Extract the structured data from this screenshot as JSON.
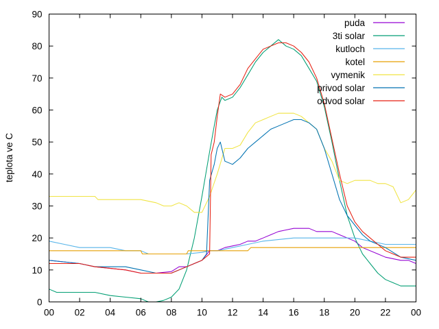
{
  "chart_data": {
    "type": "line",
    "title": "",
    "xlabel": "",
    "ylabel": "teplota ve C",
    "xlim": [
      0,
      24
    ],
    "ylim": [
      0,
      90
    ],
    "x_tick_labels": [
      "00",
      "02",
      "04",
      "06",
      "08",
      "10",
      "12",
      "14",
      "16",
      "18",
      "20",
      "22",
      "00"
    ],
    "y_tick_labels": [
      "0",
      "10",
      "20",
      "30",
      "40",
      "50",
      "60",
      "70",
      "80",
      "90"
    ],
    "grid": false,
    "legend_position": "top-right",
    "series": [
      {
        "name": "puda",
        "color": "#9400d3",
        "points": [
          [
            0,
            13
          ],
          [
            2,
            12
          ],
          [
            3,
            11
          ],
          [
            5,
            10
          ],
          [
            6,
            9
          ],
          [
            7,
            9
          ],
          [
            8,
            9.5
          ],
          [
            8.5,
            11
          ],
          [
            9,
            11
          ],
          [
            9.5,
            12
          ],
          [
            10,
            13
          ],
          [
            10.5,
            16
          ],
          [
            11,
            16
          ],
          [
            11.5,
            17
          ],
          [
            12,
            17.5
          ],
          [
            12.5,
            18
          ],
          [
            13,
            19
          ],
          [
            13.5,
            19
          ],
          [
            14,
            20
          ],
          [
            14.5,
            21
          ],
          [
            15,
            22
          ],
          [
            15.5,
            22.5
          ],
          [
            16,
            23
          ],
          [
            17,
            23
          ],
          [
            17.5,
            22
          ],
          [
            18.5,
            22
          ],
          [
            19,
            21
          ],
          [
            20,
            19
          ],
          [
            20.5,
            17
          ],
          [
            21.5,
            15
          ],
          [
            22,
            14
          ],
          [
            23,
            13
          ],
          [
            23.5,
            13
          ],
          [
            24,
            12
          ]
        ]
      },
      {
        "name": "3ti solar",
        "color": "#009e73",
        "points": [
          [
            0,
            4
          ],
          [
            0.5,
            3
          ],
          [
            2,
            3
          ],
          [
            3,
            3
          ],
          [
            4,
            2
          ],
          [
            5,
            1.5
          ],
          [
            6,
            1
          ],
          [
            6.5,
            0
          ],
          [
            7,
            0
          ],
          [
            7.5,
            0.5
          ],
          [
            8,
            1.5
          ],
          [
            8.5,
            4
          ],
          [
            9,
            10
          ],
          [
            9.5,
            20
          ],
          [
            10,
            33
          ],
          [
            10.5,
            47
          ],
          [
            10.8,
            55
          ],
          [
            11,
            60
          ],
          [
            11.3,
            64
          ],
          [
            11.5,
            63
          ],
          [
            12,
            64
          ],
          [
            12.5,
            67
          ],
          [
            13,
            71
          ],
          [
            13.5,
            75
          ],
          [
            14,
            78
          ],
          [
            14.5,
            80
          ],
          [
            15,
            82
          ],
          [
            15.5,
            80
          ],
          [
            16,
            79
          ],
          [
            16.5,
            77
          ],
          [
            17,
            73
          ],
          [
            17.5,
            69
          ],
          [
            18,
            61
          ],
          [
            18.5,
            50
          ],
          [
            19,
            38
          ],
          [
            19.5,
            27
          ],
          [
            20,
            20
          ],
          [
            20.5,
            15
          ],
          [
            21,
            12
          ],
          [
            21.5,
            9
          ],
          [
            22,
            7
          ],
          [
            22.5,
            6
          ],
          [
            23,
            5
          ],
          [
            24,
            5
          ]
        ]
      },
      {
        "name": "kutloch",
        "color": "#56b4e9",
        "points": [
          [
            0,
            19
          ],
          [
            1,
            18
          ],
          [
            2,
            17
          ],
          [
            4,
            17
          ],
          [
            5,
            16
          ],
          [
            6,
            16
          ],
          [
            6.5,
            15
          ],
          [
            8,
            15
          ],
          [
            9,
            15
          ],
          [
            10,
            15.5
          ],
          [
            10.5,
            16
          ],
          [
            11,
            16
          ],
          [
            12,
            17
          ],
          [
            13,
            18
          ],
          [
            14,
            19
          ],
          [
            16,
            20
          ],
          [
            18,
            20
          ],
          [
            19,
            20
          ],
          [
            20,
            20
          ],
          [
            21,
            19
          ],
          [
            22,
            18
          ],
          [
            24,
            18
          ]
        ]
      },
      {
        "name": "kotel",
        "color": "#e69f00",
        "points": [
          [
            0,
            16
          ],
          [
            6,
            16
          ],
          [
            6.1,
            15
          ],
          [
            9,
            15
          ],
          [
            9.1,
            16
          ],
          [
            13,
            16
          ],
          [
            13.2,
            17
          ],
          [
            24,
            17
          ]
        ]
      },
      {
        "name": "vymenik",
        "color": "#f0e442",
        "points": [
          [
            0,
            33
          ],
          [
            3,
            33
          ],
          [
            3.2,
            32
          ],
          [
            6,
            32
          ],
          [
            7,
            31
          ],
          [
            7.5,
            30
          ],
          [
            8,
            30
          ],
          [
            8.5,
            31
          ],
          [
            9,
            30
          ],
          [
            9.5,
            28
          ],
          [
            10,
            28
          ],
          [
            10.5,
            33
          ],
          [
            11,
            40
          ],
          [
            11.5,
            48
          ],
          [
            12,
            48
          ],
          [
            12.5,
            49
          ],
          [
            13,
            53
          ],
          [
            13.5,
            56
          ],
          [
            14,
            57
          ],
          [
            14.5,
            58
          ],
          [
            15,
            59
          ],
          [
            16,
            59
          ],
          [
            16.5,
            58
          ],
          [
            17,
            56
          ],
          [
            17.5,
            54
          ],
          [
            18,
            48
          ],
          [
            18.5,
            44
          ],
          [
            19,
            38
          ],
          [
            19.5,
            37
          ],
          [
            20,
            38
          ],
          [
            21,
            38
          ],
          [
            21.5,
            37
          ],
          [
            22,
            37
          ],
          [
            22.5,
            36
          ],
          [
            23,
            31
          ],
          [
            23.5,
            32
          ],
          [
            24,
            35
          ]
        ]
      },
      {
        "name": "privod solar",
        "color": "#0072b2",
        "points": [
          [
            0,
            13
          ],
          [
            2,
            12
          ],
          [
            3,
            11
          ],
          [
            5,
            11
          ],
          [
            6,
            10
          ],
          [
            7,
            9
          ],
          [
            8,
            9
          ],
          [
            9,
            11
          ],
          [
            10,
            13
          ],
          [
            10.3,
            15
          ],
          [
            10.5,
            38
          ],
          [
            10.8,
            43
          ],
          [
            11,
            48
          ],
          [
            11.2,
            50
          ],
          [
            11.5,
            44
          ],
          [
            12,
            43
          ],
          [
            12.5,
            45
          ],
          [
            13,
            48
          ],
          [
            13.5,
            50
          ],
          [
            14,
            52
          ],
          [
            14.5,
            54
          ],
          [
            15,
            55
          ],
          [
            15.5,
            56
          ],
          [
            16,
            57
          ],
          [
            16.5,
            57
          ],
          [
            17,
            56
          ],
          [
            17.5,
            54
          ],
          [
            18,
            48
          ],
          [
            18.5,
            40
          ],
          [
            19,
            32
          ],
          [
            19.5,
            27
          ],
          [
            20,
            24
          ],
          [
            20.5,
            21
          ],
          [
            21,
            19
          ],
          [
            22,
            17
          ],
          [
            23,
            14
          ],
          [
            24,
            13
          ]
        ]
      },
      {
        "name": "odvod solar",
        "color": "#e51e10",
        "points": [
          [
            0,
            12
          ],
          [
            2,
            12
          ],
          [
            3,
            11
          ],
          [
            5,
            10
          ],
          [
            6,
            9
          ],
          [
            7,
            9
          ],
          [
            8,
            9
          ],
          [
            8.5,
            10
          ],
          [
            9,
            11
          ],
          [
            10,
            13
          ],
          [
            10.5,
            15
          ],
          [
            10.6,
            46
          ],
          [
            10.8,
            50
          ],
          [
            11,
            58
          ],
          [
            11.2,
            65
          ],
          [
            11.5,
            64
          ],
          [
            12,
            65
          ],
          [
            12.5,
            68
          ],
          [
            13,
            73
          ],
          [
            13.5,
            76
          ],
          [
            14,
            79
          ],
          [
            14.5,
            80
          ],
          [
            15,
            81
          ],
          [
            15.5,
            81
          ],
          [
            16,
            80
          ],
          [
            16.5,
            78
          ],
          [
            17,
            75
          ],
          [
            17.5,
            70
          ],
          [
            18,
            62
          ],
          [
            18.5,
            51
          ],
          [
            19,
            40
          ],
          [
            19.5,
            30
          ],
          [
            20,
            25
          ],
          [
            20.5,
            22
          ],
          [
            21,
            20
          ],
          [
            21.5,
            18
          ],
          [
            22,
            16
          ],
          [
            22.5,
            15
          ],
          [
            23,
            14
          ],
          [
            24,
            14
          ]
        ]
      }
    ]
  }
}
